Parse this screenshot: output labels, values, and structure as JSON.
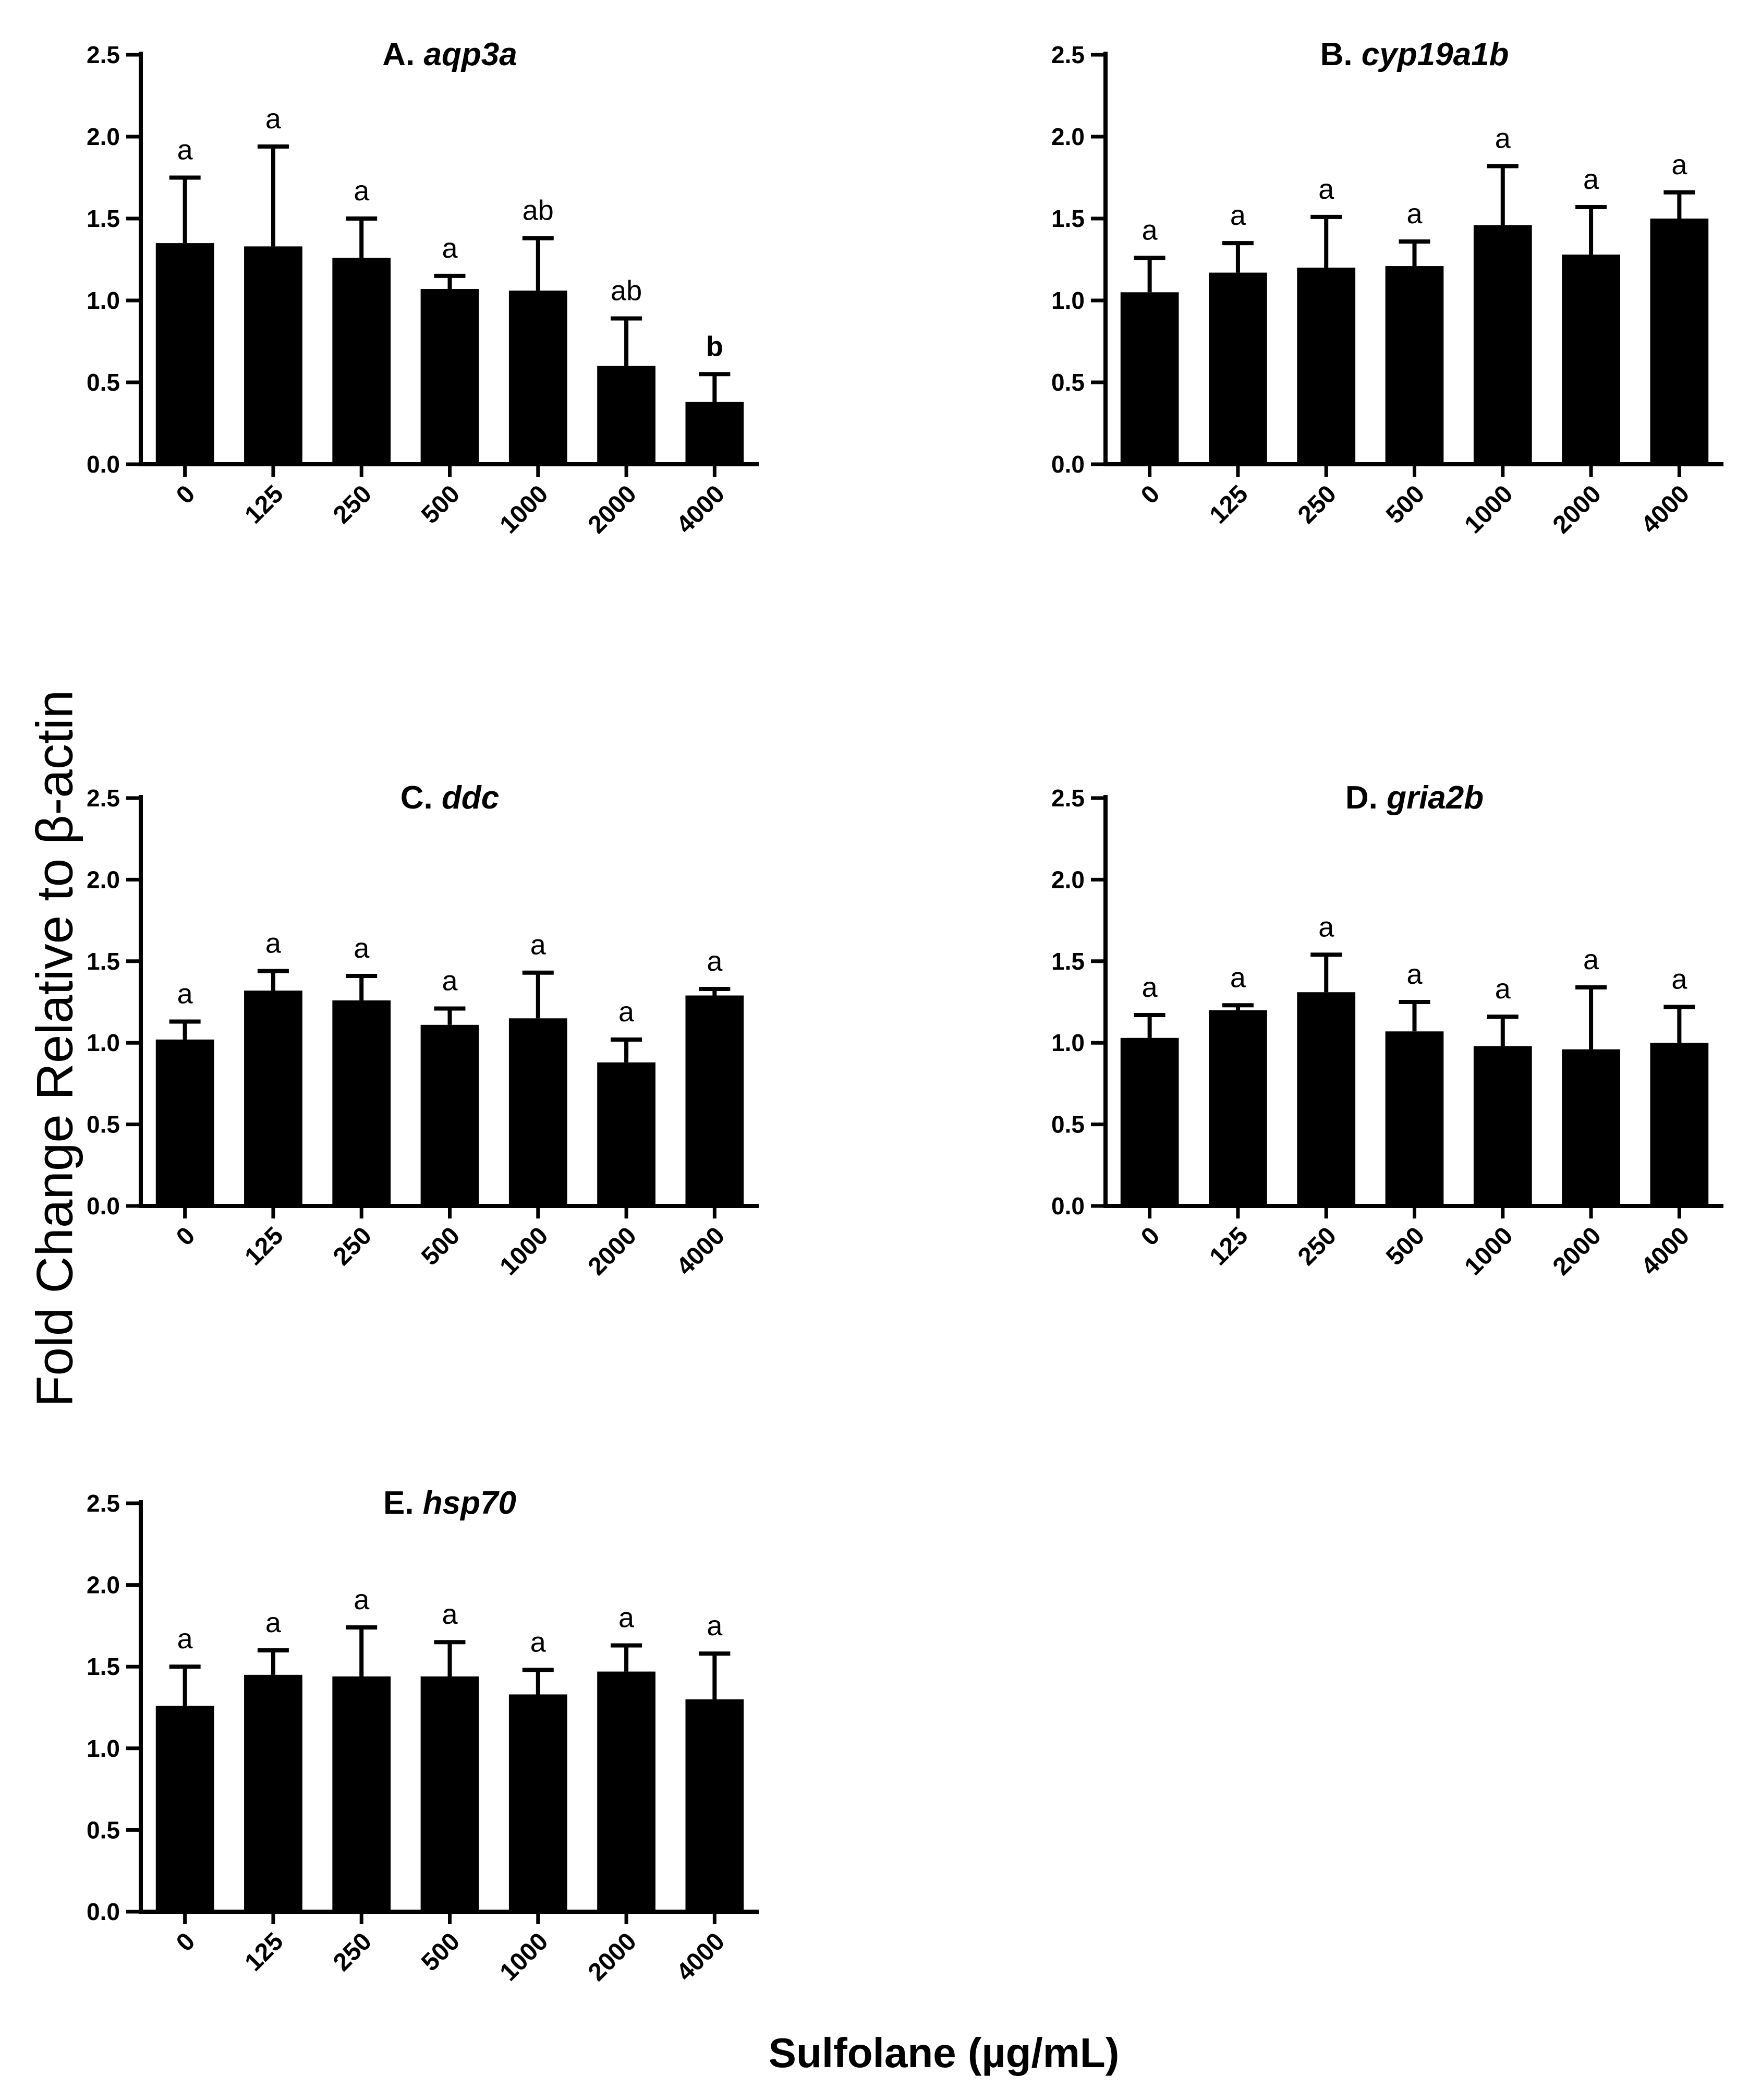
{
  "figure": {
    "ylabel": "Fold Change Relative to β-actin",
    "xlabel": "Sulfolane (µg/mL)"
  },
  "chart_data": [
    {
      "type": "bar",
      "title_prefix": "A.",
      "title_gene": "aqp3a",
      "categories": [
        "0",
        "125",
        "250",
        "500",
        "1000",
        "2000",
        "4000"
      ],
      "values": [
        1.35,
        1.33,
        1.26,
        1.07,
        1.06,
        0.6,
        0.38
      ],
      "errors": [
        0.4,
        0.61,
        0.24,
        0.08,
        0.32,
        0.29,
        0.17
      ],
      "letters": [
        "a",
        "a",
        "a",
        "a",
        "ab",
        "ab",
        "b"
      ],
      "ylim": [
        0,
        2.5
      ],
      "yticks": [
        "0.0",
        "0.5",
        "1.0",
        "1.5",
        "2.0",
        "2.5"
      ],
      "xlabel": "Sulfolane (µg/mL)",
      "ylabel": "Fold Change Relative to β-actin",
      "bar_color": "#000000"
    },
    {
      "type": "bar",
      "title_prefix": "B.",
      "title_gene": "cyp19a1b",
      "categories": [
        "0",
        "125",
        "250",
        "500",
        "1000",
        "2000",
        "4000"
      ],
      "values": [
        1.05,
        1.17,
        1.2,
        1.21,
        1.46,
        1.28,
        1.5
      ],
      "errors": [
        0.21,
        0.18,
        0.31,
        0.15,
        0.36,
        0.29,
        0.16
      ],
      "letters": [
        "a",
        "a",
        "a",
        "a",
        "a",
        "a",
        "a"
      ],
      "ylim": [
        0,
        2.5
      ],
      "yticks": [
        "0.0",
        "0.5",
        "1.0",
        "1.5",
        "2.0",
        "2.5"
      ],
      "xlabel": "Sulfolane (µg/mL)",
      "ylabel": "Fold Change Relative to β-actin",
      "bar_color": "#000000"
    },
    {
      "type": "bar",
      "title_prefix": "C.",
      "title_gene": "ddc",
      "categories": [
        "0",
        "125",
        "250",
        "500",
        "1000",
        "2000",
        "4000"
      ],
      "values": [
        1.02,
        1.32,
        1.26,
        1.11,
        1.15,
        0.88,
        1.29
      ],
      "errors": [
        0.11,
        0.12,
        0.15,
        0.1,
        0.28,
        0.14,
        0.04
      ],
      "letters": [
        "a",
        "a",
        "a",
        "a",
        "a",
        "a",
        "a"
      ],
      "ylim": [
        0,
        2.5
      ],
      "yticks": [
        "0.0",
        "0.5",
        "1.0",
        "1.5",
        "2.0",
        "2.5"
      ],
      "xlabel": "Sulfolane (µg/mL)",
      "ylabel": "Fold Change Relative to β-actin",
      "bar_color": "#000000"
    },
    {
      "type": "bar",
      "title_prefix": "D.",
      "title_gene": "gria2b",
      "categories": [
        "0",
        "125",
        "250",
        "500",
        "1000",
        "2000",
        "4000"
      ],
      "values": [
        1.03,
        1.2,
        1.31,
        1.07,
        0.98,
        0.96,
        1.0
      ],
      "errors": [
        0.14,
        0.03,
        0.23,
        0.18,
        0.18,
        0.38,
        0.22
      ],
      "letters": [
        "a",
        "a",
        "a",
        "a",
        "a",
        "a",
        "a"
      ],
      "ylim": [
        0,
        2.5
      ],
      "yticks": [
        "0.0",
        "0.5",
        "1.0",
        "1.5",
        "2.0",
        "2.5"
      ],
      "xlabel": "Sulfolane (µg/mL)",
      "ylabel": "Fold Change Relative to β-actin",
      "bar_color": "#000000"
    },
    {
      "type": "bar",
      "title_prefix": "E.",
      "title_gene": "hsp70",
      "categories": [
        "0",
        "125",
        "250",
        "500",
        "1000",
        "2000",
        "4000"
      ],
      "values": [
        1.26,
        1.45,
        1.44,
        1.44,
        1.33,
        1.47,
        1.3
      ],
      "errors": [
        0.24,
        0.15,
        0.3,
        0.21,
        0.15,
        0.16,
        0.28
      ],
      "letters": [
        "a",
        "a",
        "a",
        "a",
        "a",
        "a",
        "a"
      ],
      "ylim": [
        0,
        2.5
      ],
      "yticks": [
        "0.0",
        "0.5",
        "1.0",
        "1.5",
        "2.0",
        "2.5"
      ],
      "xlabel": "Sulfolane (µg/mL)",
      "ylabel": "Fold Change Relative to β-actin",
      "bar_color": "#000000"
    }
  ]
}
